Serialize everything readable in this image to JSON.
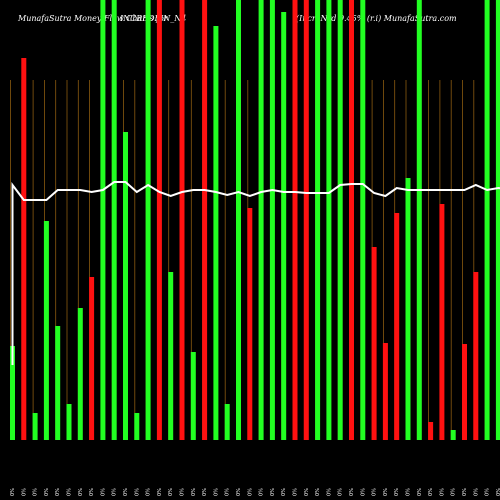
{
  "header": {
    "left": "MunafaSutra  Money Flow  Charts for",
    "mid": "INCREDFIN_N4",
    "right": "(IncreNrd 9.45% (r.i) MunafaSutra.com"
  },
  "colors": {
    "background": "#000000",
    "up": "#22ff22",
    "down": "#ff1111",
    "grid": "#8a5a10",
    "line": "#ffffff"
  },
  "chart_data": {
    "type": "bar",
    "title": "MunafaSutra  Money Flow  Charts for INCREDFIN_N4",
    "categories": [
      "0%",
      "0%",
      "0%",
      "0%",
      "0%",
      "0%",
      "0%",
      "0%",
      "0%",
      "0%",
      "0%",
      "0%",
      "0%",
      "0%",
      "0%",
      "0%",
      "0%",
      "0%",
      "0%",
      "0%",
      "0%",
      "0%",
      "0%",
      "0%",
      "0%",
      "0%",
      "0%",
      "0%",
      "0%",
      "0%",
      "0%",
      "0%",
      "0%",
      "0%",
      "0%",
      "0%",
      "0%",
      "0%",
      "0%",
      "0%",
      "0%",
      "0%",
      "0%",
      "0%",
      "0%",
      "0%"
    ],
    "directions": [
      "up",
      "down",
      "up",
      "up",
      "up",
      "up",
      "up",
      "down",
      "up",
      "up",
      "up",
      "up",
      "up",
      "down",
      "up",
      "down",
      "up",
      "down",
      "up",
      "up",
      "up",
      "down",
      "up",
      "up",
      "up",
      "down",
      "down",
      "up",
      "up",
      "up",
      "down",
      "up",
      "down",
      "down",
      "down",
      "up",
      "up",
      "down",
      "down",
      "up",
      "down",
      "down",
      "up",
      "up",
      "up",
      "down"
    ],
    "values": [
      94,
      382,
      27,
      219,
      114,
      36,
      132,
      163,
      440,
      440,
      308,
      27,
      440,
      440,
      168,
      440,
      88,
      440,
      414,
      36,
      440,
      232,
      440,
      440,
      428,
      440,
      440,
      440,
      440,
      440,
      440,
      440,
      193,
      97,
      227,
      262,
      440,
      18,
      236,
      10,
      96,
      168,
      440,
      440,
      440,
      440
    ],
    "money_flow_line": [
      255,
      240,
      240,
      240,
      250,
      250,
      250,
      248,
      250,
      258,
      258,
      248,
      255,
      248,
      244,
      248,
      250,
      250,
      248,
      245,
      248,
      244,
      248,
      250,
      248,
      248,
      247,
      247,
      247,
      255,
      256,
      256,
      247,
      244,
      252,
      250,
      250,
      250,
      250,
      250,
      250,
      255,
      250,
      252,
      250,
      250
    ],
    "ylim": [
      0,
      440
    ],
    "grid": true
  }
}
